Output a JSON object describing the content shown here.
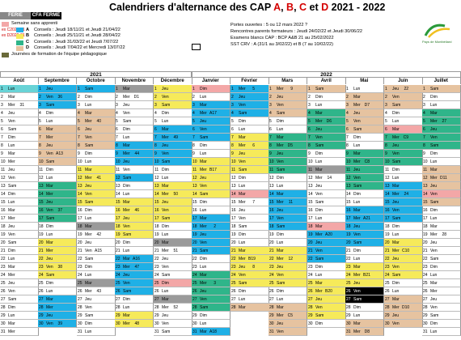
{
  "title": {
    "prefix": "Calendriers d'alternance des CAP ",
    "a": "A",
    "sep1": ", ",
    "b": "B",
    "sep2": ", ",
    "c": "C",
    "mid": " et ",
    "d": "D",
    "suffix": " 2021 - 2022"
  },
  "legend_top": {
    "ferie": "FERIE",
    "cfa": "CFA FERME"
  },
  "info": {
    "sans_apprenti": "Semaine sans apprenti",
    "rows": [
      {
        "grp": "ex C2020-21",
        "letter": "A",
        "color": "#1fb0e6",
        "text": "Conseils : Jeudi 18/11/21 et Jeudi 21/04/22"
      },
      {
        "grp": "ex D2020-21",
        "letter": "B",
        "color": "#f6ea5a",
        "text": "Conseils : Jeudi 25/11/21 et Jeudi 28/04/22"
      },
      {
        "grp": "",
        "letter": "C",
        "color": "#2fb58a",
        "text": "Conseils : Jeudi 31/03/22 et Jeudi 7/07/22"
      },
      {
        "grp": "",
        "letter": "D",
        "color": "#e6c3a0",
        "text": "Conseils : Jeudi 7/04/22 et Mercredi 13/07/22"
      }
    ],
    "formation": "Journées de formation de l'équipe pédagogique"
  },
  "right_info": [
    "Portes ouvertes :  5 ou 12 mars 2022 ?",
    "Rencontres parents formateurs : Jeudi  24/02/22 et Jeudi 30/06/22",
    "Examens blancs CAP : BCP A&B 21 au 25/02/2022",
    "SST CRV : A (31/1 au 3/02/22) et B (7 au 10/02/22)"
  ],
  "logo_text": "Pays de Montbéliard",
  "years": {
    "y2021": "2021",
    "y2022": "2022"
  },
  "months": [
    "Août",
    "Septembre",
    "Octobre",
    "Novembre",
    "Décembre",
    "Janvier",
    "Février",
    "Mars",
    "Avril",
    "Mai",
    "Juin",
    "Juillet"
  ],
  "calendar": [
    {
      "start": 0,
      "days": 31,
      "fills": {
        "1": "c-teal"
      },
      "labels": {
        "3": "31"
      }
    },
    {
      "start": 3,
      "days": 30,
      "fills": {
        "1": "c-blue",
        "2": "c-blue",
        "3": "c-blue",
        "6": "c-tan",
        "7": "c-tan",
        "8": "c-tan",
        "9": "c-tan",
        "10": "c-tan",
        "13": "c-green",
        "14": "c-green",
        "15": "c-green",
        "16": "c-green",
        "17": "c-green",
        "20": "c-yellow",
        "21": "c-yellow",
        "22": "c-yellow",
        "23": "c-yellow",
        "24": "c-yellow",
        "27": "c-blue",
        "28": "c-blue",
        "29": "c-blue",
        "30": "c-blue"
      },
      "labels": {
        "2": "36",
        "9": "A13",
        "16": "37",
        "23": "38",
        "30": "39"
      }
    },
    {
      "start": 5,
      "days": 31,
      "fills": {
        "1": "c-blue",
        "4": "c-tan",
        "5": "c-tan",
        "6": "c-tan",
        "7": "c-tan",
        "8": "c-tan",
        "11": "c-yellow",
        "12": "c-yellow",
        "13": "c-yellow",
        "14": "c-yellow",
        "15": "c-yellow",
        "18": "c-grey",
        "25": "c-grey"
      },
      "labels": {
        "5": "40",
        "12": "41",
        "19": "42",
        "21": "A15",
        "26": "43"
      }
    },
    {
      "start": 1,
      "days": 30,
      "fills": {
        "1": "c-grey",
        "8": "c-blue",
        "9": "c-blue",
        "10": "c-blue",
        "12": "c-blue",
        "15": "c-yellow",
        "16": "c-yellow",
        "17": "c-yellow",
        "18": "c-yellow",
        "19": "c-yellow",
        "22": "c-blue",
        "23": "c-blue",
        "24": "c-blue",
        "25": "c-blue",
        "26": "c-blue",
        "29": "c-yellow",
        "30": "c-yellow"
      },
      "labels": {
        "2": "D1",
        "9": "44",
        "16": "46",
        "22": "A16",
        "23": "47",
        "30": "48"
      }
    },
    {
      "start": 3,
      "days": 31,
      "fills": {
        "1": "c-yellow",
        "2": "c-yellow",
        "3": "c-yellow",
        "6": "c-blue",
        "7": "c-blue",
        "8": "c-blue",
        "9": "c-blue",
        "10": "c-blue",
        "13": "c-yellow",
        "14": "c-yellow",
        "15": "c-yellow",
        "16": "c-yellow",
        "17": "c-yellow",
        "20": "c-grey",
        "25": "c-pink",
        "27": "c-grey"
      },
      "labels": {
        "7": "49",
        "14": "50",
        "21": "51",
        "28": "52"
      }
    },
    {
      "start": 6,
      "days": 31,
      "fills": {
        "1": "c-pink",
        "3": "c-blue",
        "4": "c-blue",
        "5": "c-blue",
        "6": "c-blue",
        "7": "c-blue",
        "10": "c-yellow",
        "11": "c-yellow",
        "12": "c-yellow",
        "13": "c-yellow",
        "14": "c-yellow",
        "17": "c-blue",
        "18": "c-blue",
        "19": "c-blue",
        "20": "c-blue",
        "21": "c-blue",
        "24": "c-green",
        "25": "c-green",
        "26": "c-green",
        "27": "c-green",
        "28": "c-green",
        "31": "c-blue"
      },
      "labels": {
        "4": "A17",
        "11": "B17",
        "18": "2",
        "25": "3",
        "31": "A18"
      }
    },
    {
      "start": 2,
      "days": 28,
      "fills": {
        "1": "c-blue",
        "2": "c-blue",
        "3": "c-blue",
        "4": "c-blue",
        "7": "c-yellow",
        "8": "c-yellow",
        "9": "c-yellow",
        "10": "c-yellow",
        "11": "c-yellow",
        "14": "c-pink",
        "21": "c-yellow",
        "22": "c-yellow",
        "23": "c-yellow",
        "24": "c-yellow",
        "25": "c-yellow",
        "28": "c-tan"
      },
      "labels": {
        "1": "5",
        "8": "6",
        "15": "7",
        "22": "B19",
        "23": "8"
      }
    },
    {
      "start": 2,
      "days": 31,
      "fills": {
        "1": "c-tan",
        "2": "c-tan",
        "3": "c-tan",
        "4": "c-tan",
        "7": "c-green",
        "8": "c-green",
        "9": "c-green",
        "10": "c-green",
        "11": "c-green",
        "14": "c-blue",
        "15": "c-blue",
        "16": "c-blue",
        "17": "c-blue",
        "18": "c-blue",
        "21": "c-yellow",
        "22": "c-yellow",
        "23": "c-yellow",
        "24": "c-yellow",
        "25": "c-yellow",
        "28": "c-tan",
        "29": "c-tan",
        "30": "c-tan",
        "31": "c-tan"
      },
      "labels": {
        "1": "9",
        "8": "D5",
        "15": "11",
        "22": "12",
        "29": "C5"
      }
    },
    {
      "start": 5,
      "days": 30,
      "fills": {
        "1": "c-tan",
        "4": "c-green",
        "5": "c-green",
        "6": "c-green",
        "7": "c-green",
        "8": "c-green",
        "11": "c-grey",
        "18": "c-pink",
        "19": "c-blue",
        "20": "c-blue",
        "21": "c-blue",
        "22": "c-blue",
        "25": "c-yellow",
        "26": "c-yellow",
        "27": "c-yellow",
        "28": "c-yellow",
        "29": "c-yellow"
      },
      "labels": {
        "5": "D6",
        "12": "14",
        "19": "A20",
        "26": "B20"
      }
    },
    {
      "start": 0,
      "days": 31,
      "fills": {
        "2": "c-tan",
        "3": "c-tan",
        "4": "c-tan",
        "5": "c-tan",
        "6": "c-tan",
        "9": "c-green",
        "10": "c-green",
        "11": "c-green",
        "12": "c-green",
        "13": "c-green",
        "16": "c-blue",
        "17": "c-blue",
        "18": "c-blue",
        "19": "c-blue",
        "20": "c-blue",
        "23": "c-yellow",
        "24": "c-yellow",
        "25": "c-yellow",
        "26": "c-black",
        "27": "c-black",
        "30": "c-tan",
        "31": "c-tan"
      },
      "labels": {
        "3": "D7",
        "10": "C8",
        "17": "A21",
        "24": "B21",
        "31": "D8"
      }
    },
    {
      "start": 3,
      "days": 30,
      "fills": {
        "1": "c-tan",
        "2": "c-tan",
        "3": "c-tan",
        "6": "c-pink",
        "7": "c-green",
        "8": "c-green",
        "9": "c-green",
        "10": "c-green",
        "13": "c-blue",
        "14": "c-blue",
        "15": "c-blue",
        "16": "c-blue",
        "17": "c-blue",
        "20": "c-yellow",
        "21": "c-yellow",
        "22": "c-yellow",
        "23": "c-yellow",
        "24": "c-yellow",
        "27": "c-tan",
        "28": "c-tan",
        "29": "c-tan",
        "30": "c-tan"
      },
      "labels": {
        "1": "22",
        "7": "C9",
        "14": "24",
        "21": "C10",
        "28": "D10"
      }
    },
    {
      "start": 5,
      "days": 31,
      "fills": {
        "1": "c-tan",
        "4": "c-green",
        "5": "c-green",
        "6": "c-green",
        "7": "c-green",
        "8": "c-green",
        "11": "c-tan",
        "12": "c-tan",
        "13": "c-tan",
        "14": "c-pink",
        "15": "c-tan"
      },
      "labels": {
        "5": "27",
        "12": "D11",
        "19": "28"
      }
    }
  ],
  "day_names": [
    "Lun",
    "Mar",
    "Mer",
    "Jeu",
    "Ven",
    "Sam",
    "Dim"
  ]
}
